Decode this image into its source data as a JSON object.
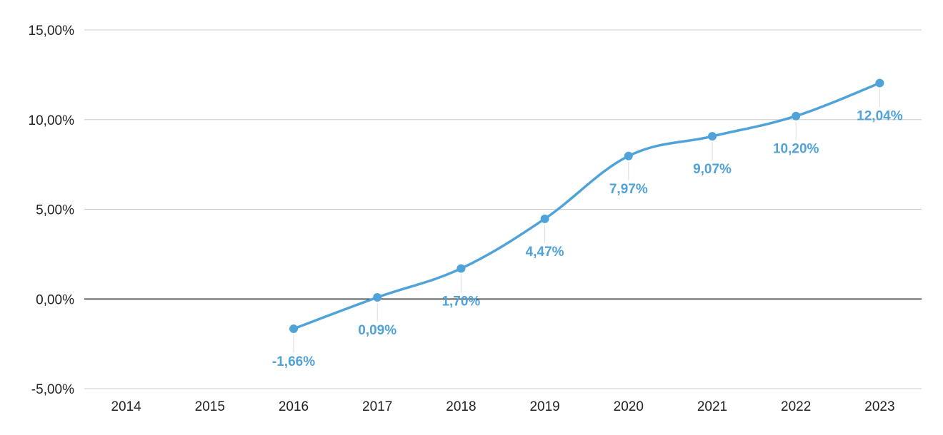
{
  "chart_data": {
    "type": "line",
    "categories": [
      "2014",
      "2015",
      "2016",
      "2017",
      "2018",
      "2019",
      "2020",
      "2021",
      "2022",
      "2023"
    ],
    "series": [
      {
        "values": [
          null,
          null,
          -1.66,
          0.09,
          1.7,
          4.47,
          7.97,
          9.07,
          10.2,
          12.04
        ],
        "labels": [
          "",
          "",
          "-1,66%",
          "0,09%",
          "1,70%",
          "4,47%",
          "7,97%",
          "9,07%",
          "10,20%",
          "12,04%"
        ],
        "color": "#4fa3d8"
      }
    ],
    "yticks": [
      {
        "value": 15,
        "label": "15,00%"
      },
      {
        "value": 10,
        "label": "10,00%"
      },
      {
        "value": 5,
        "label": "5,00%"
      },
      {
        "value": 0,
        "label": "0,00%"
      },
      {
        "value": -5,
        "label": "-5,00%"
      }
    ],
    "ylim": [
      -5,
      15
    ],
    "grid": true,
    "title": "",
    "xlabel": "",
    "ylabel": "",
    "colors": {
      "line": "#4fa3d8",
      "grid": "#cccccc",
      "zero_line": "#333333",
      "leader": "#dddddd"
    }
  }
}
